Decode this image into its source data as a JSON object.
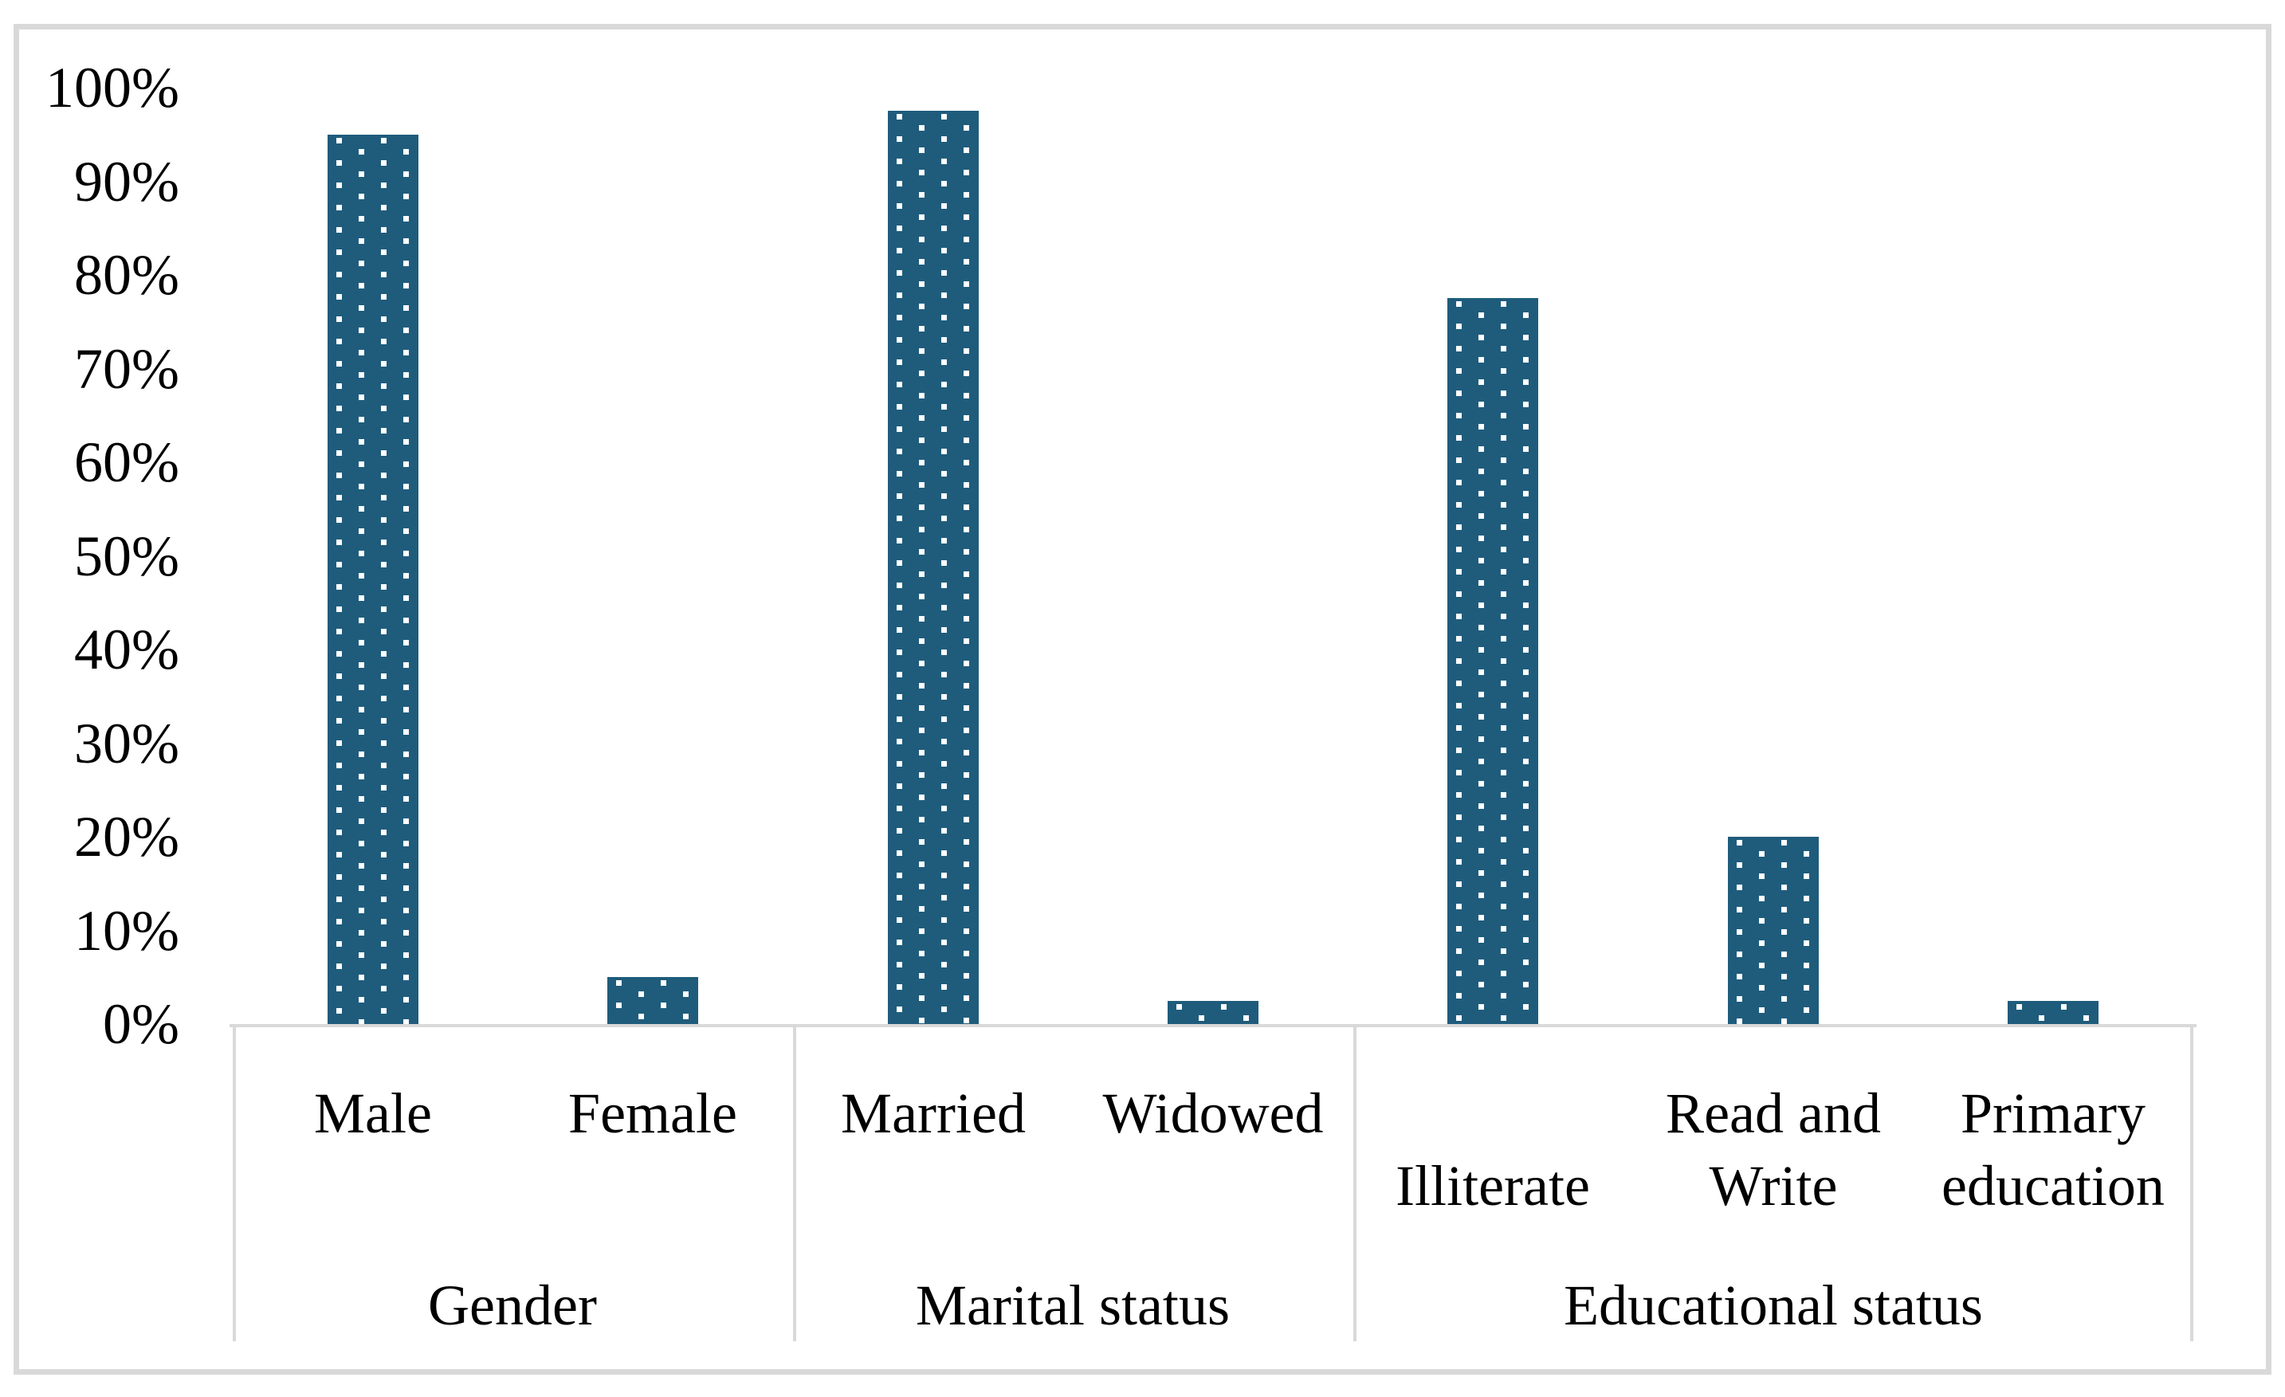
{
  "figure": {
    "background": "#FFFFFF",
    "frame_color": "#D9D9D9"
  },
  "chart_data": {
    "type": "bar",
    "title": "",
    "xlabel": "",
    "ylabel": "",
    "values_unit": "%",
    "grid": false,
    "legend": "none",
    "axis_line_color": "#D9D9D9",
    "bar_style": {
      "fill": "#1F5C7C",
      "pattern": "staggered white square dots",
      "dot_color": "#FFFFFF"
    },
    "y_axis": {
      "min": 0,
      "max": 100,
      "tick_step": 10,
      "ticks": [
        {
          "value": 100,
          "label": "100%"
        },
        {
          "value": 90,
          "label": "90%"
        },
        {
          "value": 80,
          "label": "80%"
        },
        {
          "value": 70,
          "label": "70%"
        },
        {
          "value": 60,
          "label": "60%"
        },
        {
          "value": 50,
          "label": "50%"
        },
        {
          "value": 40,
          "label": "40%"
        },
        {
          "value": 30,
          "label": "30%"
        },
        {
          "value": 20,
          "label": "20%"
        },
        {
          "value": 10,
          "label": "10%"
        },
        {
          "value": 0,
          "label": "0%"
        }
      ]
    },
    "categories": [
      "Male",
      "Female",
      "Married",
      "Widowed",
      "Illiterate",
      "Read and Write",
      "Primary education"
    ],
    "values": [
      95,
      5,
      97.5,
      2.5,
      77.5,
      20,
      2.5
    ],
    "groups": [
      {
        "label": "Gender",
        "categories": [
          {
            "label": "Male",
            "lines": [
              "Male"
            ],
            "line_row": "top",
            "value": 95
          },
          {
            "label": "Female",
            "lines": [
              "Female"
            ],
            "line_row": "top",
            "value": 5
          }
        ]
      },
      {
        "label": "Marital status",
        "categories": [
          {
            "label": "Married",
            "lines": [
              "Married"
            ],
            "line_row": "top",
            "value": 97.5
          },
          {
            "label": "Widowed",
            "lines": [
              "Widowed"
            ],
            "line_row": "top",
            "value": 2.5
          }
        ]
      },
      {
        "label": "Educational status",
        "categories": [
          {
            "label": "Illiterate",
            "lines": [
              "Illiterate"
            ],
            "line_row": "bottom",
            "value": 77.5
          },
          {
            "label": "Read and Write",
            "lines": [
              "Read and",
              "Write"
            ],
            "line_row": "top",
            "value": 20
          },
          {
            "label": "Primary education",
            "lines": [
              "Primary",
              "education"
            ],
            "line_row": "top",
            "value": 2.5
          }
        ]
      }
    ]
  }
}
